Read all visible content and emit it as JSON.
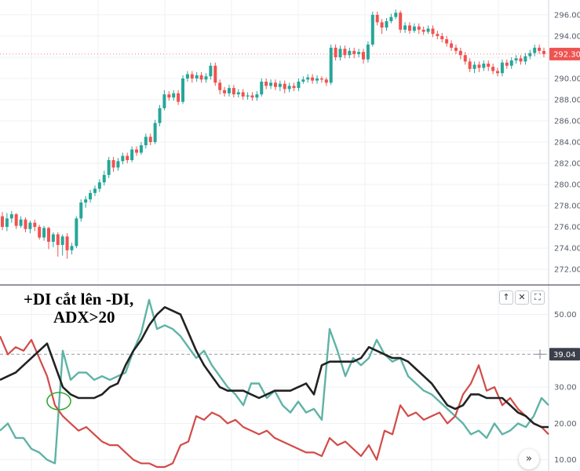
{
  "annotation": {
    "line1": "+DI cắt lên -DI,",
    "line2": "ADX>20"
  },
  "panel_buttons": [
    {
      "name": "arrow-up-icon",
      "glyph": "↑"
    },
    {
      "name": "close-icon",
      "glyph": "✕"
    },
    {
      "name": "maximize-icon",
      "glyph": "⛶"
    }
  ],
  "scroll_button": {
    "glyph": "»"
  },
  "colors": {
    "up": "#26a69a",
    "down": "#ef5350",
    "plus_di": "#5fb3a6",
    "minus_di": "#d24b48",
    "adx": "#222222",
    "price_badge": "#ef5350",
    "adx_badge": "#3b3f4a",
    "grid": "#eef0f3",
    "marker": "#33a833"
  },
  "chart_data": [
    {
      "type": "candlestick",
      "title": "",
      "ylim": [
        270.6,
        297.4
      ],
      "yticks": [
        272,
        274,
        276,
        278,
        280,
        282,
        284,
        286,
        288,
        290,
        292,
        294,
        296
      ],
      "ytick_labels": [
        "272.00",
        "274.00",
        "276.00",
        "278.00",
        "280.00",
        "282.00",
        "284.00",
        "286.00",
        "288.00",
        "290.00",
        "292.00",
        "294.00",
        "296.00"
      ],
      "last_price": 292.3,
      "last_price_label": "292.30",
      "candles": [
        [
          277.0,
          276.0,
          277.4,
          275.7
        ],
        [
          276.0,
          276.8,
          277.3,
          275.6
        ],
        [
          276.8,
          277.2,
          277.5,
          276.4
        ],
        [
          277.2,
          276.1,
          277.3,
          275.8
        ],
        [
          276.1,
          276.7,
          277.0,
          275.9
        ],
        [
          276.7,
          275.8,
          276.9,
          275.5
        ],
        [
          275.8,
          276.4,
          276.6,
          275.4
        ],
        [
          276.4,
          276.0,
          276.7,
          275.6
        ],
        [
          276.0,
          275.0,
          276.2,
          274.8
        ],
        [
          275.0,
          275.9,
          276.1,
          274.7
        ],
        [
          275.9,
          274.6,
          276.0,
          273.9
        ],
        [
          274.6,
          275.3,
          275.5,
          274.1
        ],
        [
          275.3,
          274.3,
          275.5,
          273.2
        ],
        [
          274.3,
          275.1,
          275.3,
          273.3
        ],
        [
          275.1,
          273.8,
          275.4,
          273.0
        ],
        [
          273.8,
          274.2,
          274.5,
          273.4
        ],
        [
          274.2,
          276.8,
          277.0,
          274.0
        ],
        [
          276.8,
          278.3,
          278.6,
          276.5
        ],
        [
          278.3,
          278.6,
          278.9,
          277.8
        ],
        [
          278.6,
          279.2,
          279.5,
          278.3
        ],
        [
          279.2,
          279.6,
          279.9,
          278.9
        ],
        [
          279.6,
          280.2,
          280.5,
          279.3
        ],
        [
          280.2,
          280.9,
          281.3,
          279.9
        ],
        [
          280.9,
          282.3,
          282.6,
          280.6
        ],
        [
          282.3,
          281.6,
          282.6,
          281.2
        ],
        [
          281.6,
          282.2,
          282.5,
          281.3
        ],
        [
          282.2,
          282.7,
          283.0,
          281.9
        ],
        [
          282.7,
          282.3,
          283.0,
          282.0
        ],
        [
          282.3,
          283.3,
          283.6,
          282.1
        ],
        [
          283.3,
          283.0,
          283.6,
          282.7
        ],
        [
          283.0,
          283.7,
          284.0,
          282.8
        ],
        [
          283.7,
          284.5,
          284.8,
          283.4
        ],
        [
          284.5,
          284.0,
          284.8,
          283.7
        ],
        [
          284.0,
          285.8,
          286.1,
          283.8
        ],
        [
          285.8,
          287.2,
          287.5,
          285.5
        ],
        [
          287.2,
          288.5,
          288.9,
          287.0
        ],
        [
          288.5,
          288.2,
          288.8,
          287.9
        ],
        [
          288.2,
          288.6,
          288.9,
          287.9
        ],
        [
          288.6,
          287.8,
          288.9,
          287.5
        ],
        [
          287.8,
          290.0,
          290.3,
          287.6
        ],
        [
          290.0,
          290.4,
          290.7,
          289.7
        ],
        [
          290.4,
          290.0,
          290.7,
          289.6
        ],
        [
          290.0,
          290.3,
          290.6,
          289.7
        ],
        [
          290.3,
          289.9,
          290.6,
          289.6
        ],
        [
          289.9,
          290.2,
          290.5,
          289.6
        ],
        [
          290.2,
          291.2,
          291.5,
          289.9
        ],
        [
          291.2,
          289.6,
          291.5,
          289.3
        ],
        [
          289.6,
          288.9,
          289.9,
          288.5
        ],
        [
          288.9,
          288.6,
          289.2,
          288.3
        ],
        [
          288.6,
          289.1,
          289.4,
          288.3
        ],
        [
          289.1,
          288.5,
          289.4,
          288.2
        ],
        [
          288.5,
          288.7,
          289.0,
          288.2
        ],
        [
          288.7,
          288.3,
          289.0,
          288.0
        ],
        [
          288.3,
          288.4,
          288.7,
          288.0
        ],
        [
          288.4,
          288.2,
          288.7,
          287.9
        ],
        [
          288.2,
          288.5,
          288.8,
          287.9
        ],
        [
          288.5,
          289.7,
          290.0,
          288.3
        ],
        [
          289.7,
          289.3,
          290.0,
          289.0
        ],
        [
          289.3,
          289.6,
          289.9,
          289.0
        ],
        [
          289.6,
          289.2,
          289.9,
          288.9
        ],
        [
          289.2,
          289.5,
          289.8,
          288.8
        ],
        [
          289.5,
          289.0,
          289.8,
          288.6
        ],
        [
          289.0,
          289.3,
          289.6,
          288.7
        ],
        [
          289.3,
          289.1,
          289.6,
          288.8
        ],
        [
          289.1,
          289.7,
          290.0,
          288.8
        ],
        [
          289.7,
          289.9,
          290.2,
          289.5
        ],
        [
          289.9,
          290.1,
          290.4,
          289.6
        ],
        [
          290.1,
          289.8,
          290.4,
          289.5
        ],
        [
          289.8,
          290.0,
          290.3,
          289.5
        ],
        [
          290.0,
          289.9,
          290.2,
          289.6
        ],
        [
          289.9,
          289.6,
          290.1,
          289.3
        ],
        [
          289.6,
          292.9,
          293.2,
          289.4
        ],
        [
          292.9,
          292.0,
          293.2,
          291.7
        ],
        [
          292.0,
          292.8,
          293.1,
          291.7
        ],
        [
          292.8,
          292.2,
          293.1,
          291.9
        ],
        [
          292.2,
          292.6,
          292.9,
          291.9
        ],
        [
          292.6,
          292.3,
          292.9,
          291.9
        ],
        [
          292.3,
          292.5,
          292.8,
          292.0
        ],
        [
          292.5,
          291.8,
          292.8,
          291.4
        ],
        [
          291.8,
          293.2,
          293.5,
          291.5
        ],
        [
          293.2,
          296.0,
          296.3,
          293.0
        ],
        [
          296.0,
          295.3,
          296.3,
          295.0
        ],
        [
          295.3,
          294.8,
          295.6,
          294.2
        ],
        [
          294.8,
          295.4,
          295.7,
          294.5
        ],
        [
          295.4,
          295.8,
          296.1,
          295.2
        ],
        [
          295.8,
          296.2,
          296.5,
          295.6
        ],
        [
          296.2,
          294.6,
          296.4,
          294.3
        ],
        [
          294.6,
          295.0,
          295.3,
          294.3
        ],
        [
          295.0,
          294.5,
          295.3,
          294.2
        ],
        [
          294.5,
          294.9,
          295.2,
          294.3
        ],
        [
          294.9,
          294.6,
          295.2,
          294.2
        ],
        [
          294.6,
          294.4,
          294.9,
          294.1
        ],
        [
          294.4,
          294.7,
          295.0,
          294.2
        ],
        [
          294.7,
          294.2,
          295.0,
          293.9
        ],
        [
          294.2,
          294.0,
          294.5,
          293.7
        ],
        [
          294.0,
          293.7,
          294.3,
          293.4
        ],
        [
          293.7,
          293.3,
          294.0,
          293.0
        ],
        [
          293.3,
          292.9,
          293.6,
          292.6
        ],
        [
          292.9,
          292.6,
          293.2,
          292.3
        ],
        [
          292.6,
          292.2,
          292.9,
          291.8
        ],
        [
          292.2,
          291.6,
          292.5,
          291.3
        ],
        [
          291.6,
          290.9,
          291.9,
          290.6
        ],
        [
          290.9,
          291.3,
          291.6,
          290.5
        ],
        [
          291.3,
          291.0,
          291.6,
          290.6
        ],
        [
          291.0,
          291.4,
          291.7,
          290.7
        ],
        [
          291.4,
          291.1,
          291.7,
          290.7
        ],
        [
          291.1,
          290.7,
          291.4,
          290.4
        ],
        [
          290.7,
          290.5,
          291.0,
          290.2
        ],
        [
          290.5,
          291.5,
          291.8,
          290.2
        ],
        [
          291.5,
          291.2,
          291.8,
          290.9
        ],
        [
          291.2,
          291.7,
          292.0,
          290.9
        ],
        [
          291.7,
          291.9,
          292.2,
          291.4
        ],
        [
          291.9,
          291.6,
          292.2,
          291.3
        ],
        [
          291.6,
          292.1,
          292.4,
          291.3
        ],
        [
          292.1,
          292.4,
          292.7,
          291.8
        ],
        [
          292.4,
          292.9,
          293.2,
          292.1
        ],
        [
          292.9,
          292.6,
          293.2,
          292.3
        ],
        [
          292.6,
          292.3,
          292.9,
          292.0
        ]
      ]
    },
    {
      "type": "line",
      "title": "",
      "ylim": [
        6.9,
        57.9
      ],
      "yticks": [
        10,
        20,
        30,
        40,
        50
      ],
      "ytick_labels": [
        "10.00",
        "20.00",
        "30.00",
        "40.00",
        "50.00"
      ],
      "reference_line": 39.04,
      "reference_label": "39.04",
      "x": [
        0,
        10,
        20,
        30,
        40,
        50,
        60,
        70,
        80,
        90,
        100,
        110,
        120,
        130,
        140,
        150,
        160,
        170,
        180,
        190,
        200,
        210,
        220,
        230,
        240,
        250,
        260,
        270,
        280,
        290,
        300,
        310,
        320,
        330,
        340,
        350,
        360,
        370,
        380,
        390,
        400,
        410,
        420,
        430,
        440,
        450,
        460,
        470,
        480,
        490,
        500,
        510,
        520,
        530,
        540,
        550,
        560,
        570,
        580,
        590,
        600,
        610,
        620,
        630,
        640,
        650,
        660,
        670,
        680,
        690,
        699
      ],
      "series": [
        {
          "key": "plus_di",
          "values": [
            18,
            20,
            16,
            16,
            13,
            12,
            10,
            9,
            40,
            32,
            34,
            34,
            32,
            33,
            32,
            33,
            34,
            40,
            45,
            54,
            46,
            47,
            46,
            44,
            41,
            38,
            40,
            36,
            33,
            30,
            28,
            25,
            31,
            31,
            27,
            29,
            25,
            23,
            26,
            23,
            24,
            21,
            46,
            40,
            33,
            38,
            36,
            38,
            43,
            39,
            37,
            38,
            33,
            31,
            29,
            28,
            26,
            24,
            22,
            20,
            17,
            18,
            16,
            20,
            17,
            18,
            20,
            19,
            22,
            27,
            25
          ]
        },
        {
          "key": "minus_di",
          "values": [
            44,
            39,
            41,
            40,
            43,
            38,
            33,
            25,
            22,
            20,
            18,
            19,
            17,
            15,
            14,
            14,
            12,
            10,
            9,
            9,
            8,
            8,
            9,
            14,
            15,
            22,
            21,
            23,
            22,
            20,
            21,
            19,
            18,
            17,
            18,
            16,
            15,
            14,
            13,
            12,
            12,
            11,
            16,
            14,
            15,
            13,
            11,
            14,
            10,
            18,
            17,
            25,
            22,
            23,
            21,
            22,
            23,
            20,
            22,
            28,
            31,
            36,
            29,
            30,
            25,
            27,
            24,
            22,
            20,
            19,
            17
          ]
        },
        {
          "key": "adx",
          "values": [
            32,
            33,
            34,
            36,
            38,
            40,
            42,
            36,
            30,
            28,
            27,
            27,
            27,
            28,
            30,
            31,
            36,
            40,
            43,
            47,
            50,
            52,
            51,
            50,
            45,
            40,
            36,
            33,
            30,
            29,
            29,
            29,
            28,
            27,
            28,
            29,
            29,
            29,
            30,
            31,
            28,
            36,
            37,
            37,
            37,
            37,
            38,
            41,
            40,
            39,
            38,
            38,
            37,
            35,
            33,
            31,
            28,
            25,
            24,
            25,
            28,
            28,
            27,
            27,
            27,
            25,
            23,
            22,
            20,
            19,
            19
          ]
        }
      ]
    }
  ]
}
